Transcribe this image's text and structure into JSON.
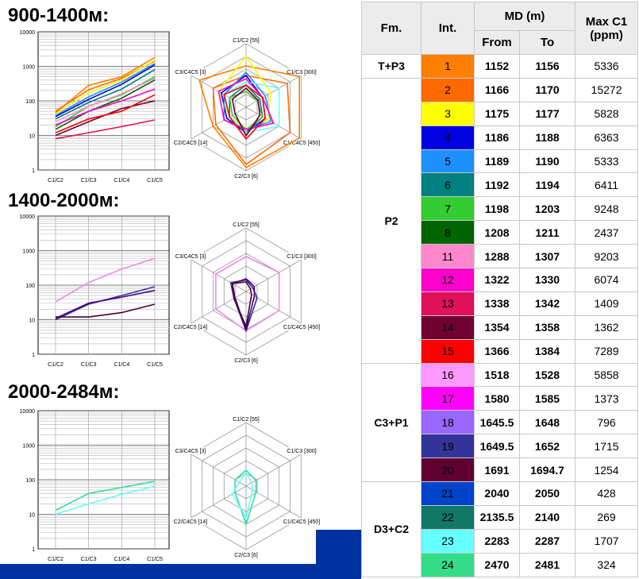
{
  "sections": [
    {
      "title": "900-1400м:"
    },
    {
      "title": "1400-2000м:"
    },
    {
      "title": "2000-2484м:"
    }
  ],
  "axis_text": {
    "y_ticks": [
      "10000",
      "1000",
      "100",
      "10",
      "1"
    ],
    "x_ticks": [
      "C1/C2",
      "C1/C3",
      "C1/C4",
      "C1/C5"
    ],
    "radar_axes": [
      "C1/C2 [55]",
      "C1/C3 [300]",
      "C1/C4C5 [450]",
      "C2/C3 [6]",
      "C2/C4C5 [14]",
      "C3/C4C5 [3]"
    ]
  },
  "table": {
    "headers": {
      "fm": "Fm.",
      "int": "Int.",
      "md": "MD (m)",
      "from": "From",
      "to": "To",
      "max": "Max C1 (ppm)"
    },
    "groups": [
      {
        "fm": "T+P3",
        "rows": [
          {
            "int": "1",
            "color": "#ff7f00",
            "from": "1152",
            "to": "1156",
            "max": "5336"
          }
        ]
      },
      {
        "fm": "P2",
        "rows": [
          {
            "int": "2",
            "color": "#ff6a00",
            "from": "1166",
            "to": "1170",
            "max": "15272"
          },
          {
            "int": "3",
            "color": "#ffff00",
            "from": "1175",
            "to": "1177",
            "max": "5828"
          },
          {
            "int": "4",
            "color": "#0000e0",
            "from": "1186",
            "to": "1188",
            "max": "6363"
          },
          {
            "int": "5",
            "color": "#1e90ff",
            "from": "1189",
            "to": "1190",
            "max": "5333"
          },
          {
            "int": "6",
            "color": "#008080",
            "from": "1192",
            "to": "1194",
            "max": "6411"
          },
          {
            "int": "7",
            "color": "#33cc33",
            "from": "1198",
            "to": "1203",
            "max": "9248"
          },
          {
            "int": "8",
            "color": "#006400",
            "from": "1208",
            "to": "1211",
            "max": "2437"
          },
          {
            "int": "11",
            "color": "#ff88cc",
            "from": "1288",
            "to": "1307",
            "max": "9203"
          },
          {
            "int": "12",
            "color": "#ff00cc",
            "from": "1322",
            "to": "1330",
            "max": "6074"
          },
          {
            "int": "13",
            "color": "#e0105a",
            "from": "1338",
            "to": "1342",
            "max": "1409"
          },
          {
            "int": "14",
            "color": "#700030",
            "from": "1354",
            "to": "1358",
            "max": "1362"
          },
          {
            "int": "15",
            "color": "#ff0000",
            "from": "1366",
            "to": "1384",
            "max": "7289"
          }
        ]
      },
      {
        "fm": "C3+P1",
        "rows": [
          {
            "int": "16",
            "color": "#ff99ff",
            "from": "1518",
            "to": "1528",
            "max": "5858"
          },
          {
            "int": "17",
            "color": "#ff00ff",
            "from": "1580",
            "to": "1585",
            "max": "1373"
          },
          {
            "int": "18",
            "color": "#9966ff",
            "from": "1645.5",
            "to": "1648",
            "max": "796"
          },
          {
            "int": "19",
            "color": "#333399",
            "from": "1649.5",
            "to": "1652",
            "max": "1715"
          },
          {
            "int": "20",
            "color": "#600030",
            "from": "1691",
            "to": "1694.7",
            "max": "1254"
          }
        ]
      },
      {
        "fm": "D3+C2",
        "rows": [
          {
            "int": "21",
            "color": "#0044cc",
            "from": "2040",
            "to": "2050",
            "max": "428"
          },
          {
            "int": "22",
            "color": "#117766",
            "from": "2135.5",
            "to": "2140",
            "max": "269"
          },
          {
            "int": "23",
            "color": "#66ffff",
            "from": "2283",
            "to": "2287",
            "max": "1707"
          },
          {
            "int": "24",
            "color": "#33dd88",
            "from": "2470",
            "to": "2481",
            "max": "324"
          }
        ]
      }
    ]
  },
  "chart_data": [
    {
      "type": "line",
      "y_scale": "log",
      "ylim": [
        1,
        10000
      ],
      "categories": [
        "C1/C2",
        "C1/C3",
        "C1/C4",
        "C1/C5"
      ],
      "series": [
        {
          "color": "#ff7f00",
          "values": [
            45,
            280,
            500,
            1800
          ]
        },
        {
          "color": "#ff6a00",
          "values": [
            50,
            210,
            450,
            1400
          ]
        },
        {
          "color": "#ffff00",
          "values": [
            42,
            170,
            400,
            1500
          ]
        },
        {
          "color": "#0000e0",
          "values": [
            35,
            110,
            300,
            1100
          ]
        },
        {
          "color": "#1e90ff",
          "values": [
            38,
            130,
            350,
            1200
          ]
        },
        {
          "color": "#008080",
          "values": [
            30,
            90,
            220,
            800
          ]
        },
        {
          "color": "#33cc33",
          "values": [
            18,
            70,
            150,
            500
          ]
        },
        {
          "color": "#006400",
          "values": [
            15,
            50,
            120,
            400
          ]
        },
        {
          "color": "#ff88cc",
          "values": [
            25,
            70,
            160,
            450
          ]
        },
        {
          "color": "#ff00cc",
          "values": [
            20,
            50,
            100,
            220
          ]
        },
        {
          "color": "#e0105a",
          "values": [
            8,
            12,
            18,
            28
          ]
        },
        {
          "color": "#700030",
          "values": [
            10,
            25,
            60,
            100
          ]
        },
        {
          "color": "#ff0000",
          "values": [
            12,
            30,
            50,
            150
          ]
        }
      ]
    },
    {
      "type": "radar",
      "axes": [
        "C1/C2",
        "C1/C3",
        "C1/C4C5",
        "C2/C3",
        "C2/C4C5",
        "C3/C4C5"
      ],
      "axis_max": [
        55,
        300,
        450,
        6,
        14,
        3
      ],
      "series": [
        {
          "color": "#ff7f00",
          "values": [
            0.65,
            0.97,
            0.97,
            0.95,
            0.6,
            0.85
          ]
        },
        {
          "color": "#ff6a00",
          "values": [
            0.5,
            0.75,
            0.8,
            0.9,
            0.55,
            0.6
          ]
        },
        {
          "color": "#ffff00",
          "values": [
            0.8,
            0.45,
            0.4,
            0.35,
            0.3,
            0.5
          ]
        },
        {
          "color": "#0000e0",
          "values": [
            0.5,
            0.3,
            0.35,
            0.4,
            0.35,
            0.45
          ]
        },
        {
          "color": "#1e90ff",
          "values": [
            0.55,
            0.35,
            0.45,
            0.35,
            0.4,
            0.4
          ]
        },
        {
          "color": "#008080",
          "values": [
            0.35,
            0.25,
            0.3,
            0.4,
            0.3,
            0.3
          ]
        },
        {
          "color": "#33cc33",
          "values": [
            0.25,
            0.2,
            0.3,
            0.35,
            0.25,
            0.3
          ]
        },
        {
          "color": "#66ffff",
          "values": [
            0.4,
            0.6,
            0.6,
            0.4,
            0.3,
            0.4
          ]
        },
        {
          "color": "#ff00cc",
          "values": [
            0.45,
            0.3,
            0.5,
            0.35,
            0.4,
            0.5
          ]
        },
        {
          "color": "#700030",
          "values": [
            0.3,
            0.22,
            0.25,
            0.45,
            0.2,
            0.25
          ]
        },
        {
          "color": "#ff0000",
          "values": [
            0.35,
            0.3,
            0.35,
            0.5,
            0.3,
            0.4
          ]
        }
      ]
    },
    {
      "type": "line",
      "y_scale": "log",
      "ylim": [
        1,
        10000
      ],
      "categories": [
        "C1/C2",
        "C1/C3",
        "C1/C4",
        "C1/C5"
      ],
      "series": [
        {
          "color": "#ee88ee",
          "values": [
            33,
            120,
            290,
            600
          ]
        },
        {
          "color": "#333399",
          "values": [
            10,
            28,
            50,
            90
          ]
        },
        {
          "color": "#4b0082",
          "values": [
            11,
            30,
            45,
            70
          ]
        },
        {
          "color": "#4a0030",
          "values": [
            12,
            12,
            16,
            28
          ]
        }
      ]
    },
    {
      "type": "radar",
      "axes": [
        "C1/C2",
        "C1/C3",
        "C1/C4C5",
        "C2/C3",
        "C2/C4C5",
        "C3/C4C5"
      ],
      "axis_max": [
        55,
        300,
        450,
        6,
        14,
        3
      ],
      "series": [
        {
          "color": "#ee88ee",
          "values": [
            0.55,
            0.6,
            0.6,
            0.62,
            0.55,
            0.55
          ]
        },
        {
          "color": "#333399",
          "values": [
            0.18,
            0.12,
            0.2,
            0.62,
            0.22,
            0.28
          ]
        },
        {
          "color": "#4b0082",
          "values": [
            0.2,
            0.15,
            0.15,
            0.6,
            0.2,
            0.25
          ]
        },
        {
          "color": "#4a0030",
          "values": [
            0.15,
            0.08,
            0.1,
            0.55,
            0.22,
            0.25
          ]
        }
      ]
    },
    {
      "type": "line",
      "y_scale": "log",
      "ylim": [
        1,
        10000
      ],
      "categories": [
        "C1/C2",
        "C1/C3",
        "C1/C4",
        "C1/C5"
      ],
      "series": [
        {
          "color": "#33dd99",
          "values": [
            13,
            40,
            60,
            90
          ]
        },
        {
          "color": "#66ffff",
          "values": [
            10,
            20,
            38,
            65
          ]
        }
      ]
    },
    {
      "type": "radar",
      "axes": [
        "C1/C2",
        "C1/C3",
        "C1/C4C5",
        "C2/C3",
        "C2/C4C5",
        "C3/C4C5"
      ],
      "axis_max": [
        55,
        300,
        450,
        6,
        14,
        3
      ],
      "series": [
        {
          "color": "#33dd99",
          "values": [
            0.25,
            0.18,
            0.18,
            0.6,
            0.2,
            0.2
          ]
        },
        {
          "color": "#66ffff",
          "values": [
            0.22,
            0.1,
            0.12,
            0.5,
            0.25,
            0.12
          ]
        }
      ]
    }
  ]
}
